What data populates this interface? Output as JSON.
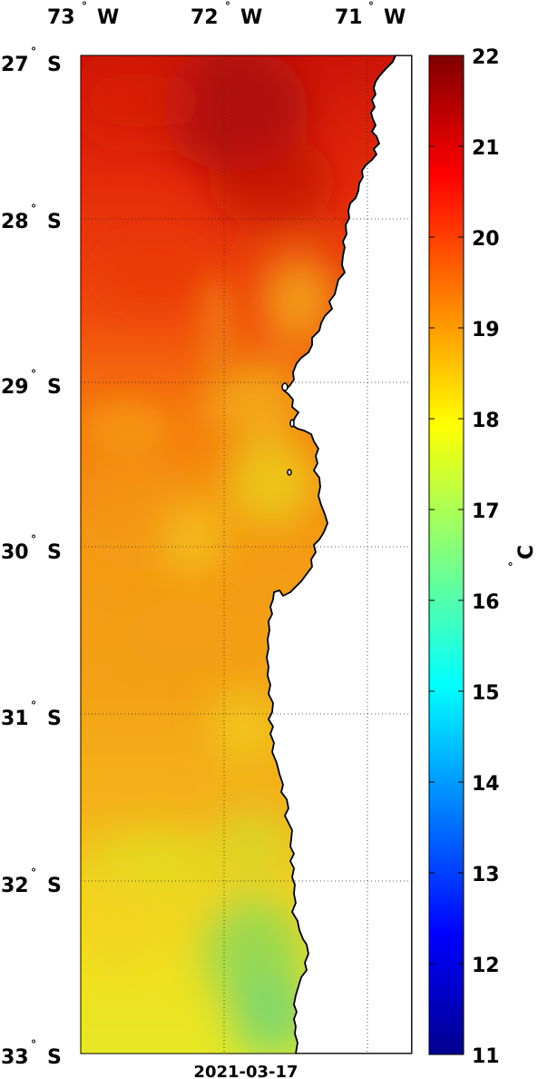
{
  "map": {
    "lon_labels": [
      {
        "deg": "73",
        "hem": "W"
      },
      {
        "deg": "72",
        "hem": "W"
      },
      {
        "deg": "71",
        "hem": "W"
      }
    ],
    "lat_labels": [
      {
        "deg": "27",
        "hem": "S"
      },
      {
        "deg": "28",
        "hem": "S"
      },
      {
        "deg": "29",
        "hem": "S"
      },
      {
        "deg": "30",
        "hem": "S"
      },
      {
        "deg": "31",
        "hem": "S"
      },
      {
        "deg": "32",
        "hem": "S"
      },
      {
        "deg": "33",
        "hem": "S"
      }
    ],
    "degree_symbol": "°",
    "date": "2021-03-17",
    "land_color": "#ffffff",
    "coast_color": "#000000",
    "grid": "dotted"
  },
  "colorbar": {
    "ticks": [
      "22",
      "21",
      "20",
      "19",
      "18",
      "17",
      "16",
      "15",
      "14",
      "13",
      "12",
      "11"
    ],
    "min": 11,
    "max": 22,
    "unit_degree": "°",
    "unit_letter": "C",
    "colormap": "jet"
  }
}
